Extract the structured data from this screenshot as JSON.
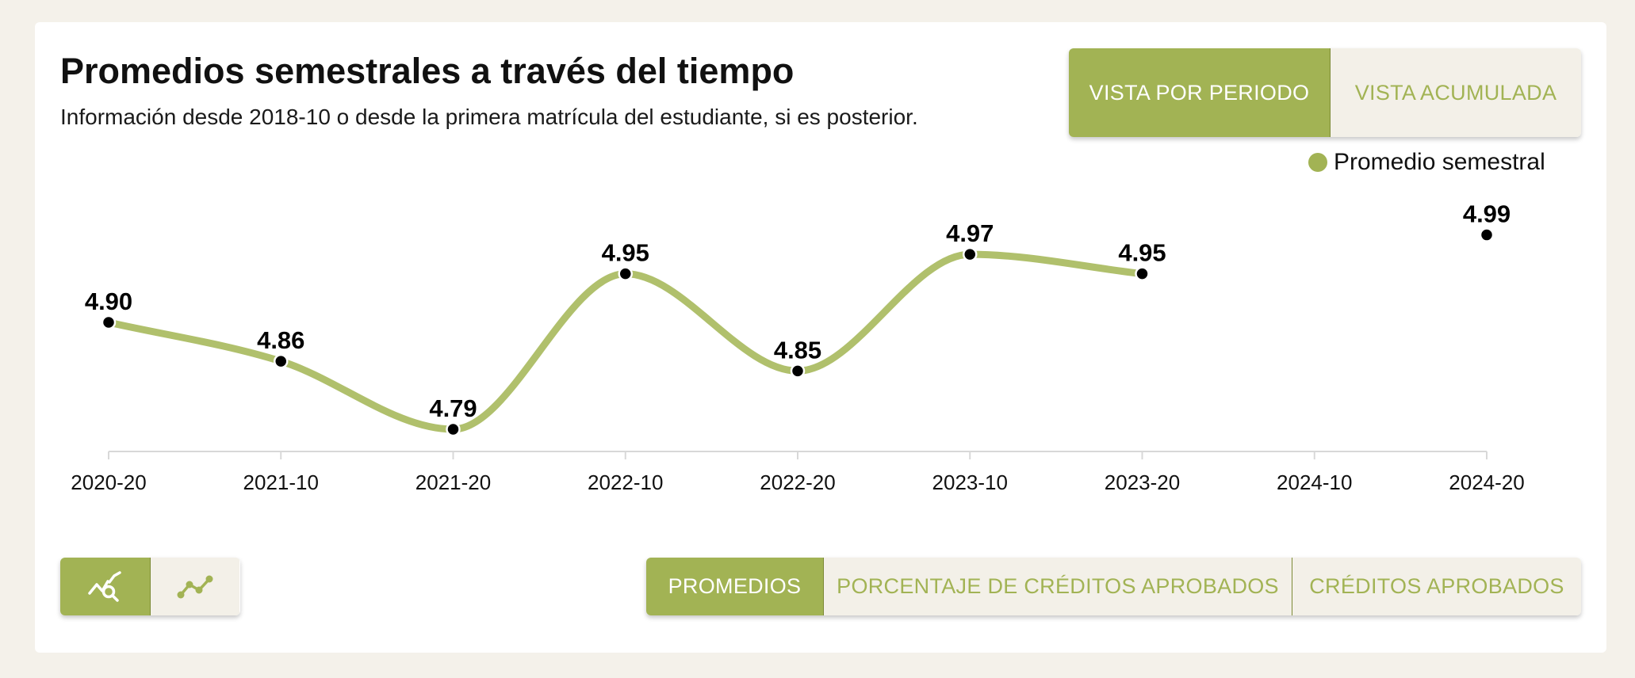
{
  "header": {
    "title": "Promedios semestrales a través del tiempo",
    "subtitle": "Información desde 2018-10 o desde la primera matrícula del estudiante, si es posterior."
  },
  "view_toggle": {
    "by_period_label": "VISTA POR PERIODO",
    "cumulative_label": "VISTA ACUMULADA",
    "selected": "VISTA POR PERIODO"
  },
  "chart_mode_toggle": {
    "items": [
      {
        "icon": "chart-zoom-icon",
        "selected": true
      },
      {
        "icon": "line-chart-icon",
        "selected": false
      }
    ]
  },
  "metric_tabs": {
    "promedios_label": "PROMEDIOS",
    "porcentaje_label": "PORCENTAJE DE CRÉDITOS APROBADOS",
    "creditos_label": "CRÉDITOS APROBADOS",
    "selected": "PROMEDIOS"
  },
  "colors": {
    "accent": "#a2b354",
    "accent_light": "#f3f0e8",
    "line": "#b0c06c",
    "point": "#000000",
    "background": "#f4f1ea"
  },
  "chart_data": {
    "type": "line",
    "categories": [
      "2020-20",
      "2021-10",
      "2021-20",
      "2022-10",
      "2022-20",
      "2023-10",
      "2023-20",
      "2024-10",
      "2024-20"
    ],
    "series": [
      {
        "name": "Promedio semestral",
        "values": [
          4.9,
          4.86,
          4.79,
          4.95,
          4.85,
          4.97,
          4.95,
          null,
          4.99
        ],
        "labels": [
          "4.90",
          "4.86",
          "4.79",
          "4.95",
          "4.85",
          "4.97",
          "4.95",
          "",
          "4.99"
        ]
      }
    ],
    "ylim": [
      4.79,
      5.01
    ],
    "grid": false,
    "legend_position": "top-right",
    "smooth": true
  }
}
